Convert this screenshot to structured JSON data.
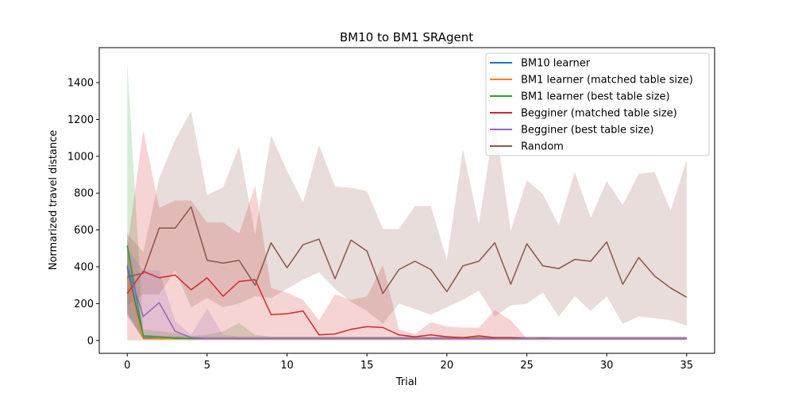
{
  "chart_data": {
    "type": "line",
    "title": "BM10 to BM1  SRAgent",
    "xlabel": "Trial",
    "ylabel": "Normarized travel distance",
    "xlim": [
      -1.75,
      36.75
    ],
    "ylim": [
      -70,
      1590
    ],
    "xticks": [
      0,
      5,
      10,
      15,
      20,
      25,
      30,
      35
    ],
    "yticks": [
      0,
      200,
      400,
      600,
      800,
      1000,
      1200,
      1400
    ],
    "legend_position": "upper right",
    "grid": false,
    "series": [
      {
        "name": "BM10 learner",
        "color": "#1f77b4",
        "band_opacity": 0.2,
        "x": [
          0,
          1,
          2,
          3,
          4,
          5,
          6,
          7,
          8,
          9,
          10,
          11,
          12,
          13,
          14,
          15,
          16,
          17,
          18,
          19,
          20,
          21,
          22,
          23,
          24,
          25,
          26,
          27,
          28,
          29,
          30,
          31,
          32,
          33,
          34,
          35
        ],
        "values": [
          400,
          15,
          12,
          12,
          10,
          10,
          10,
          10,
          10,
          10,
          10,
          10,
          10,
          10,
          10,
          10,
          10,
          10,
          10,
          10,
          10,
          10,
          10,
          10,
          10,
          10,
          10,
          10,
          10,
          10,
          10,
          10,
          10,
          10,
          10,
          10
        ],
        "lower": [
          150,
          5,
          5,
          5,
          5,
          5,
          5,
          5,
          5,
          5,
          5,
          5,
          5,
          5,
          5,
          5,
          5,
          5,
          5,
          5,
          5,
          5,
          5,
          5,
          5,
          5,
          5,
          5,
          5,
          5,
          5,
          5,
          5,
          5,
          5,
          5
        ],
        "upper": [
          580,
          30,
          25,
          25,
          20,
          20,
          20,
          20,
          20,
          20,
          20,
          20,
          20,
          20,
          20,
          20,
          20,
          20,
          20,
          20,
          20,
          20,
          20,
          20,
          20,
          20,
          20,
          20,
          20,
          20,
          20,
          20,
          20,
          20,
          20,
          20
        ]
      },
      {
        "name": "BM1 learner (matched table size)",
        "color": "#ff7f0e",
        "band_opacity": 0.2,
        "x": [
          0,
          1,
          2,
          3,
          4,
          5,
          6,
          7,
          8,
          9,
          10,
          11,
          12,
          13,
          14,
          15,
          16,
          17,
          18,
          19,
          20,
          21,
          22,
          23,
          24,
          25,
          26,
          27,
          28,
          29,
          30,
          31,
          32,
          33,
          34,
          35
        ],
        "values": [
          340,
          10,
          10,
          10,
          10,
          10,
          10,
          10,
          10,
          10,
          10,
          10,
          10,
          10,
          10,
          10,
          10,
          10,
          10,
          10,
          10,
          10,
          10,
          10,
          10,
          10,
          10,
          10,
          10,
          10,
          10,
          10,
          10,
          10,
          10,
          10
        ],
        "lower": [
          150,
          5,
          5,
          5,
          5,
          5,
          5,
          5,
          5,
          5,
          5,
          5,
          5,
          5,
          5,
          5,
          5,
          5,
          5,
          5,
          5,
          5,
          5,
          5,
          5,
          5,
          5,
          5,
          5,
          5,
          5,
          5,
          5,
          5,
          5,
          5
        ],
        "upper": [
          500,
          20,
          20,
          20,
          20,
          20,
          20,
          20,
          20,
          20,
          20,
          20,
          20,
          20,
          20,
          20,
          20,
          20,
          20,
          20,
          20,
          20,
          20,
          20,
          20,
          20,
          20,
          20,
          20,
          20,
          20,
          20,
          20,
          20,
          20,
          20
        ]
      },
      {
        "name": "BM1 learner (best table size)",
        "color": "#2ca02c",
        "band_opacity": 0.2,
        "x": [
          0,
          1,
          2,
          3,
          4,
          5,
          6,
          7,
          8,
          9,
          10,
          11,
          12,
          13,
          14,
          15,
          16,
          17,
          18,
          19,
          20,
          21,
          22,
          23,
          24,
          25,
          26,
          27,
          28,
          29,
          30,
          31,
          32,
          33,
          34,
          35
        ],
        "values": [
          515,
          25,
          20,
          12,
          10,
          10,
          10,
          10,
          10,
          10,
          10,
          10,
          10,
          10,
          10,
          10,
          10,
          10,
          10,
          10,
          10,
          10,
          10,
          10,
          10,
          10,
          10,
          10,
          10,
          10,
          10,
          10,
          10,
          10,
          10,
          10
        ],
        "lower": [
          140,
          5,
          5,
          5,
          5,
          5,
          5,
          5,
          5,
          5,
          5,
          5,
          5,
          5,
          5,
          5,
          5,
          5,
          5,
          5,
          5,
          5,
          5,
          5,
          5,
          5,
          5,
          5,
          5,
          5,
          5,
          5,
          5,
          5,
          5,
          5
        ],
        "upper": [
          1510,
          60,
          50,
          40,
          25,
          30,
          50,
          95,
          30,
          20,
          20,
          20,
          20,
          20,
          20,
          20,
          20,
          20,
          20,
          20,
          20,
          20,
          20,
          20,
          20,
          20,
          20,
          20,
          20,
          20,
          20,
          20,
          20,
          20,
          20,
          20
        ]
      },
      {
        "name": "Begginer (matched table size)",
        "color": "#d62728",
        "band_opacity": 0.2,
        "x": [
          0,
          1,
          2,
          3,
          4,
          5,
          6,
          7,
          8,
          9,
          10,
          11,
          12,
          13,
          14,
          15,
          16,
          17,
          18,
          19,
          20,
          21,
          22,
          23,
          24,
          25,
          26,
          27,
          28,
          29,
          30,
          31,
          32,
          33,
          34,
          35
        ],
        "values": [
          255,
          375,
          340,
          355,
          275,
          340,
          240,
          320,
          330,
          140,
          145,
          160,
          30,
          35,
          60,
          75,
          70,
          30,
          20,
          30,
          20,
          15,
          25,
          15,
          15,
          10,
          12,
          10,
          10,
          10,
          10,
          10,
          10,
          10,
          10,
          10
        ],
        "lower": [
          0,
          0,
          0,
          0,
          0,
          0,
          0,
          0,
          0,
          0,
          0,
          0,
          0,
          0,
          0,
          0,
          0,
          0,
          0,
          0,
          0,
          0,
          0,
          0,
          0,
          0,
          0,
          0,
          0,
          0,
          0,
          0,
          0,
          0,
          0,
          0
        ],
        "upper": [
          500,
          1140,
          720,
          760,
          760,
          640,
          640,
          580,
          840,
          285,
          260,
          220,
          110,
          250,
          220,
          240,
          410,
          60,
          35,
          100,
          75,
          70,
          70,
          165,
          110,
          10,
          12,
          10,
          10,
          10,
          10,
          10,
          10,
          10,
          10,
          10
        ]
      },
      {
        "name": "Begginer (best table size)",
        "color": "#9467bd",
        "band_opacity": 0.2,
        "x": [
          0,
          1,
          2,
          3,
          4,
          5,
          6,
          7,
          8,
          9,
          10,
          11,
          12,
          13,
          14,
          15,
          16,
          17,
          18,
          19,
          20,
          21,
          22,
          23,
          24,
          25,
          26,
          27,
          28,
          29,
          30,
          31,
          32,
          33,
          34,
          35
        ],
        "values": [
          410,
          130,
          205,
          50,
          15,
          10,
          10,
          10,
          10,
          10,
          10,
          10,
          10,
          10,
          10,
          10,
          10,
          10,
          10,
          10,
          10,
          10,
          10,
          10,
          10,
          10,
          10,
          10,
          10,
          10,
          10,
          10,
          10,
          10,
          10,
          10
        ],
        "lower": [
          130,
          10,
          20,
          5,
          5,
          5,
          5,
          5,
          5,
          5,
          5,
          5,
          5,
          5,
          5,
          5,
          5,
          5,
          5,
          5,
          5,
          5,
          5,
          5,
          5,
          5,
          5,
          5,
          5,
          5,
          5,
          5,
          5,
          5,
          5,
          5
        ],
        "upper": [
          500,
          380,
          380,
          105,
          30,
          175,
          30,
          20,
          20,
          20,
          20,
          20,
          20,
          20,
          20,
          20,
          20,
          20,
          20,
          20,
          20,
          20,
          20,
          20,
          20,
          20,
          20,
          20,
          20,
          20,
          20,
          20,
          20,
          20,
          20,
          20
        ]
      },
      {
        "name": "Random",
        "color": "#8c564b",
        "band_opacity": 0.2,
        "x": [
          0,
          1,
          2,
          3,
          4,
          5,
          6,
          7,
          8,
          9,
          10,
          11,
          12,
          13,
          14,
          15,
          16,
          17,
          18,
          19,
          20,
          21,
          22,
          23,
          24,
          25,
          26,
          27,
          28,
          29,
          30,
          31,
          32,
          33,
          34,
          35
        ],
        "values": [
          345,
          365,
          610,
          610,
          725,
          435,
          420,
          435,
          300,
          530,
          395,
          520,
          550,
          335,
          545,
          485,
          255,
          385,
          430,
          385,
          265,
          405,
          430,
          530,
          305,
          525,
          405,
          390,
          440,
          430,
          535,
          305,
          450,
          350,
          285,
          235
        ],
        "lower": [
          190,
          250,
          250,
          380,
          180,
          230,
          180,
          200,
          240,
          230,
          280,
          330,
          370,
          280,
          210,
          160,
          90,
          200,
          170,
          140,
          180,
          220,
          270,
          130,
          190,
          200,
          260,
          130,
          240,
          160,
          240,
          90,
          130,
          120,
          110,
          80
        ],
        "upper": [
          580,
          480,
          880,
          1090,
          1245,
          790,
          830,
          1055,
          575,
          1115,
          920,
          750,
          1060,
          835,
          830,
          810,
          605,
          605,
          730,
          730,
          435,
          1040,
          630,
          1195,
          595,
          870,
          795,
          625,
          915,
          665,
          865,
          735,
          905,
          915,
          705,
          980
        ]
      }
    ]
  }
}
